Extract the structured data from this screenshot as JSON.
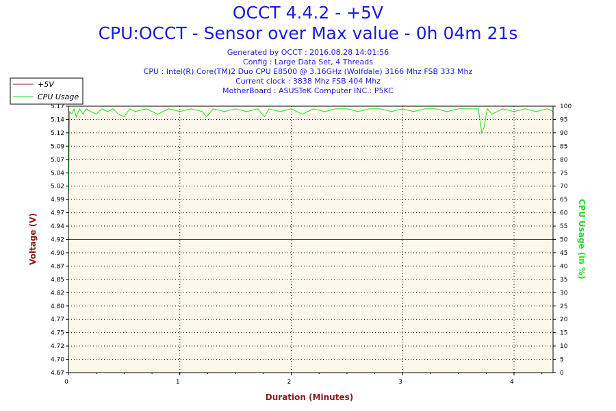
{
  "header": {
    "title": "OCCT 4.4.2 - +5V",
    "subtitle": "CPU:OCCT - Sensor over Max value - 0h 04m 21s",
    "info": [
      "Generated by OCCT : 2016.08.28 14:01:56",
      "Config : Large Data Set, 4 Threads",
      "CPU : Intel(R) Core(TM)2 Duo CPU E8500 @ 3.16GHz (Wolfdale) 3166 Mhz FSB 333 Mhz",
      "Current clock : 3838 Mhz FSB 404 Mhz",
      "MotherBoard : ASUSTeK Computer INC.: P5KC"
    ]
  },
  "colors": {
    "voltage": "#8b1a1a",
    "cpu": "#22dd22",
    "plot_bg": "#fdf8ec",
    "title": "#1a1adb"
  },
  "chart_data": {
    "type": "line",
    "xlabel": "Duration (Minutes)",
    "ylabel_left": "Voltage (V)",
    "ylabel_right": "CPU Usage (in %)",
    "xlim": [
      0,
      4.35
    ],
    "x_ticks": [
      "0",
      "1",
      "2",
      "3",
      "4"
    ],
    "ylim_left": [
      4.67,
      5.17
    ],
    "y_left_ticks": [
      "4.67",
      "4.70",
      "4.72",
      "4.75",
      "4.77",
      "4.80",
      "4.82",
      "4.85",
      "4.87",
      "4.90",
      "4.92",
      "4.94",
      "4.97",
      "4.99",
      "5.02",
      "5.04",
      "5.07",
      "5.09",
      "5.12",
      "5.14",
      "5.17"
    ],
    "ylim_right": [
      0,
      100
    ],
    "y_right_ticks": [
      "0",
      "5",
      "10",
      "15",
      "20",
      "25",
      "30",
      "35",
      "40",
      "45",
      "50",
      "55",
      "60",
      "65",
      "70",
      "75",
      "80",
      "85",
      "90",
      "95",
      "100"
    ],
    "grid": true,
    "legend_position": "top-left",
    "series": [
      {
        "name": "+5V",
        "axis": "left",
        "x": [
          0,
          4.35
        ],
        "values": [
          4.92,
          4.92
        ]
      },
      {
        "name": "CPU Usage",
        "axis": "right",
        "x": [
          0,
          0.01,
          0.03,
          0.05,
          0.07,
          0.1,
          0.13,
          0.16,
          0.2,
          0.25,
          0.3,
          0.35,
          0.4,
          0.45,
          0.5,
          0.55,
          0.6,
          0.7,
          0.8,
          0.9,
          1.0,
          1.1,
          1.2,
          1.24,
          1.3,
          1.4,
          1.5,
          1.6,
          1.7,
          1.76,
          1.8,
          1.9,
          2.0,
          2.1,
          2.2,
          2.3,
          2.4,
          2.5,
          2.6,
          2.7,
          2.8,
          2.9,
          3.0,
          3.1,
          3.2,
          3.3,
          3.4,
          3.5,
          3.6,
          3.68,
          3.71,
          3.73,
          3.76,
          3.8,
          3.9,
          4.0,
          4.1,
          4.2,
          4.3,
          4.35
        ],
        "values": [
          60,
          98,
          97,
          99,
          96,
          99,
          97,
          99,
          98,
          97,
          99,
          98,
          99,
          97,
          96,
          99,
          98,
          99,
          97,
          99,
          98,
          99,
          98,
          96,
          99,
          98,
          99,
          98,
          99,
          96,
          99,
          98,
          99,
          97,
          99,
          98,
          99,
          99,
          98,
          99,
          99,
          98,
          99,
          98,
          99,
          99,
          98,
          99,
          99,
          99,
          90,
          92,
          99,
          97,
          99,
          98,
          99,
          98,
          99,
          98
        ]
      }
    ]
  }
}
